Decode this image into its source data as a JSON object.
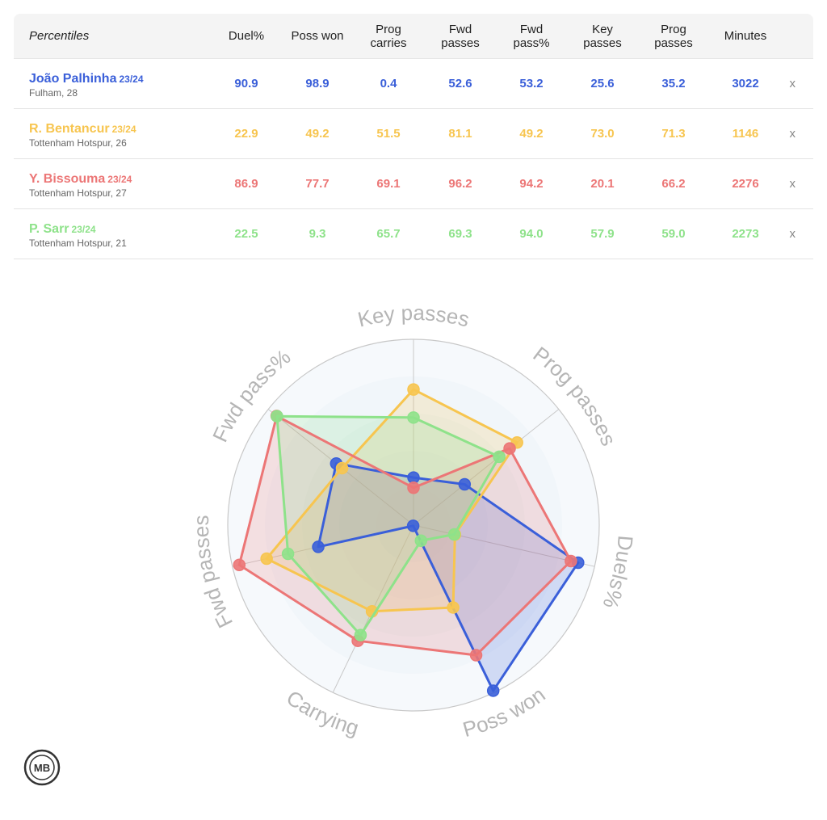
{
  "table": {
    "corner_label": "Percentiles",
    "columns": [
      "Duel%",
      "Poss won",
      "Prog\ncarries",
      "Fwd\npasses",
      "Fwd\npass%",
      "Key\npasses",
      "Prog\npasses",
      "Minutes"
    ],
    "remove_label": "x",
    "rows": [
      {
        "name": "João Palhinha",
        "season": "23/24",
        "club": "Fulham, 28",
        "color": "#3a5fd9",
        "values": [
          "90.9",
          "98.9",
          "0.4",
          "52.6",
          "53.2",
          "25.6",
          "35.2",
          "3022"
        ]
      },
      {
        "name": "R. Bentancur",
        "season": "23/24",
        "club": "Tottenham Hotspur, 26",
        "color": "#f7c54f",
        "values": [
          "22.9",
          "49.2",
          "51.5",
          "81.1",
          "49.2",
          "73.0",
          "71.3",
          "1146"
        ]
      },
      {
        "name": "Y. Bissouma",
        "season": "23/24",
        "club": "Tottenham Hotspur, 27",
        "color": "#ec7676",
        "values": [
          "86.9",
          "77.7",
          "69.1",
          "96.2",
          "94.2",
          "20.1",
          "66.2",
          "2276"
        ]
      },
      {
        "name": "P. Sarr",
        "season": "23/24",
        "club": "Tottenham Hotspur, 21",
        "color": "#8ee28a",
        "values": [
          "22.5",
          "9.3",
          "65.7",
          "69.3",
          "94.0",
          "57.9",
          "59.0",
          "2273"
        ]
      }
    ]
  },
  "chart_data": {
    "type": "radar",
    "axes": [
      "Key passes",
      "Prog passes",
      "Duels%",
      "Poss won",
      "Carrying",
      "Fwd passes",
      "Fwd pass%"
    ],
    "range": [
      0,
      100
    ],
    "series": [
      {
        "name": "João Palhinha",
        "color": "#3a5fd9",
        "values": [
          25.6,
          35.2,
          90.9,
          98.9,
          0.4,
          52.6,
          53.2
        ]
      },
      {
        "name": "R. Bentancur",
        "color": "#f7c54f",
        "values": [
          73.0,
          71.3,
          22.9,
          49.2,
          51.5,
          81.1,
          49.2
        ]
      },
      {
        "name": "Y. Bissouma",
        "color": "#ec7676",
        "values": [
          20.1,
          66.2,
          86.9,
          77.7,
          69.1,
          96.2,
          94.2
        ]
      },
      {
        "name": "P. Sarr",
        "color": "#8ee28a",
        "values": [
          57.9,
          59.0,
          22.5,
          9.3,
          65.7,
          69.3,
          94.0
        ]
      }
    ]
  },
  "logo": {
    "text": "MB"
  }
}
